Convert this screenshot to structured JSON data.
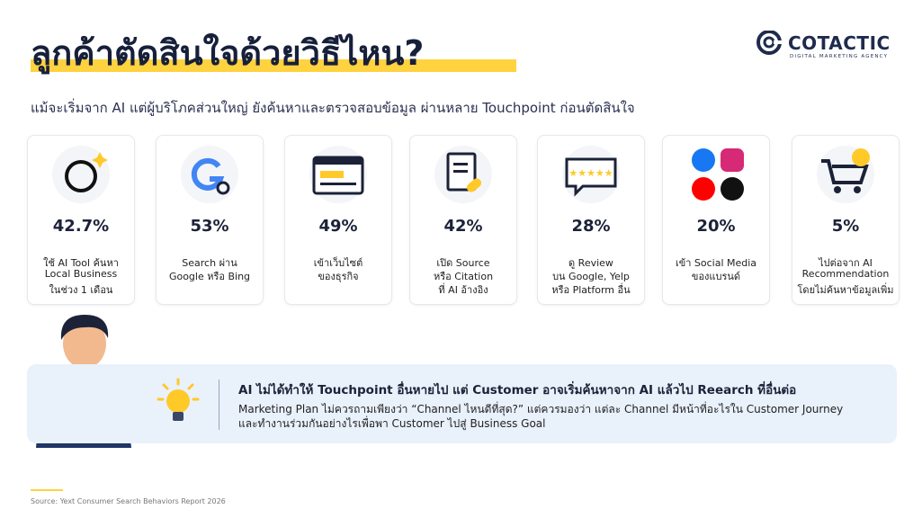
{
  "header": {
    "title": "ลูกค้าตัดสินใจด้วยวิธีไหน?",
    "subtitle": "แม้จะเริ่มจาก AI แต่ผู้บริโภคส่วนใหญ่ ยังค้นหาและตรวจสอบข้อมูล ผ่านหลาย Touchpoint ก่อนตัดสินใจ"
  },
  "logo": {
    "name": "COTACTIC",
    "tagline": "DIGITAL MARKETING AGENCY"
  },
  "cards": [
    {
      "value": "42.7%",
      "lines": [
        "ใช้ AI Tool ค้นหา",
        "Local Business",
        "ในช่วง 1 เดือน"
      ]
    },
    {
      "value": "53%",
      "lines": [
        "Search ผ่าน",
        "Google หรือ Bing"
      ]
    },
    {
      "value": "49%",
      "lines": [
        "เข้าเว็บไซต์",
        "ของธุรกิจ"
      ]
    },
    {
      "value": "42%",
      "lines": [
        "เปิด Source",
        "หรือ Citation",
        "ที่ AI อ้างอิง"
      ]
    },
    {
      "value": "28%",
      "lines": [
        "ดู Review",
        "บน Google, Yelp",
        "หรือ Platform อื่น"
      ]
    },
    {
      "value": "20%",
      "lines": [
        "เข้า Social Media",
        "ของแบรนด์"
      ]
    },
    {
      "value": "5%",
      "lines": [
        "ไปต่อจาก AI",
        "Recommendation",
        "โดยไม่ค้นหาข้อมูลเพิ่ม"
      ]
    }
  ],
  "callout": {
    "heading": "AI ไม่ได้ทำให้ Touchpoint อื่นหายไป แต่ Customer อาจเริ่มค้นหาจาก AI แล้วไป Reearch ที่อื่นต่อ",
    "body": [
      "Marketing Plan ไม่ควรถามเพียงว่า “Channel ไหนดีที่สุด?” แต่ควรมองว่า แต่ละ Channel มีหน้าที่อะไรใน Customer Journey",
      "และทำงานร่วมกันอย่างไรเพื่อพา Customer ไปสู่ Business Goal"
    ]
  },
  "source": "Source: Yext Consumer Search Behaviors Report 2026"
}
